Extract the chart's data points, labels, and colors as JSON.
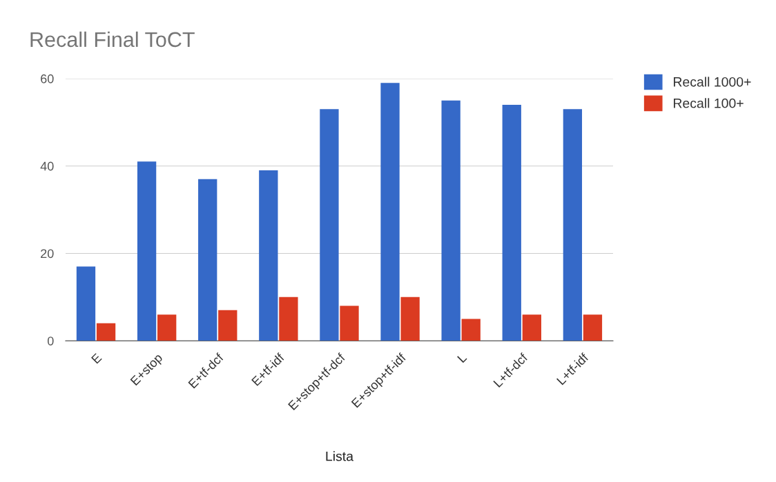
{
  "chart_data": {
    "type": "bar",
    "title": "Recall Final ToCT",
    "xlabel": "Lista",
    "categories": [
      "E",
      "E+stop",
      "E+tf-dcf",
      "E+tf-idf",
      "E+stop+tf-dcf",
      "E+stop+tf-idf",
      "L",
      "L+tf-dcf",
      "L+tf-idf"
    ],
    "series": [
      {
        "name": "Recall 1000+",
        "color": "#3569c8",
        "values": [
          17,
          41,
          37,
          39,
          53,
          59,
          55,
          54,
          53
        ]
      },
      {
        "name": "Recall 100+",
        "color": "#db3b21",
        "values": [
          4,
          6,
          7,
          10,
          8,
          10,
          5,
          6,
          6
        ]
      }
    ],
    "ylim": [
      0,
      60
    ],
    "yticks": [
      0,
      20,
      40,
      60
    ],
    "grid": "y",
    "legend": "top right"
  }
}
